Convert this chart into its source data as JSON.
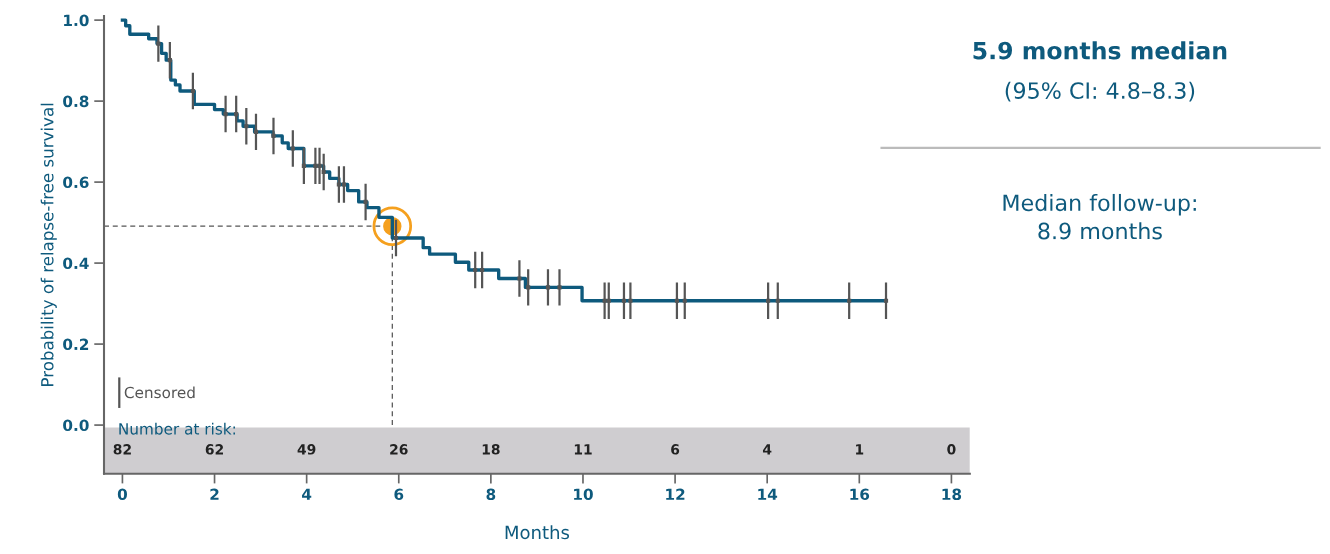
{
  "chart_data": {
    "type": "step",
    "xlabel": "Months",
    "ylabel": "Probability of relapse-free survival",
    "xlim": [
      -0.4,
      18.4
    ],
    "xticks": [
      0,
      2,
      4,
      6,
      8,
      10,
      12,
      14,
      16,
      18
    ],
    "ylim": [
      -0.12,
      1.01
    ],
    "yticks": [
      {
        "value": 0,
        "label": "0.0"
      },
      0.2,
      0.4,
      0.6,
      0.8,
      {
        "value": 1,
        "label": "1.0"
      }
    ],
    "grid": false,
    "legend": "bottom left",
    "series": [
      {
        "color": "#0e5a7d",
        "x": [
          0,
          0.07,
          0.16,
          0.57,
          0.75,
          0.85,
          0.95,
          1.05,
          1.15,
          1.25,
          1.56,
          2.0,
          2.19,
          2.49,
          2.62,
          2.87,
          3.27,
          3.47,
          3.6,
          3.94,
          4.37,
          4.5,
          4.7,
          4.89,
          5.13,
          5.31,
          5.57,
          5.86,
          6.53,
          6.67,
          7.23,
          7.52,
          8.17,
          8.75,
          9.98,
          16.54
        ],
        "values": [
          1.0,
          0.986,
          0.965,
          0.954,
          0.942,
          0.918,
          0.901,
          0.852,
          0.84,
          0.825,
          0.792,
          0.779,
          0.768,
          0.751,
          0.738,
          0.724,
          0.714,
          0.697,
          0.683,
          0.64,
          0.625,
          0.609,
          0.594,
          0.579,
          0.551,
          0.537,
          0.513,
          0.462,
          0.438,
          0.422,
          0.402,
          0.383,
          0.362,
          0.34,
          0.307,
          0.307
        ]
      },
      {
        "type": "scatter",
        "name": "Censored",
        "color": "#555555",
        "marker": "square",
        "errors": [
          0.045,
          0.045,
          0.045,
          0.045,
          0.045,
          0.045,
          0.045,
          0.045,
          0.045,
          0.045,
          0.045,
          0.045,
          0.045,
          0.045,
          0.045,
          0.045,
          0.045,
          0.045,
          0.045,
          0.045,
          0.045,
          0.045,
          0.045,
          0.045,
          0.045,
          0.045,
          0.045,
          0.045,
          0.045,
          0.045,
          0.045,
          0.045,
          0.045
        ],
        "x": [
          0.78,
          1.03,
          1.53,
          2.24,
          2.47,
          2.69,
          2.9,
          3.28,
          3.7,
          3.94,
          4.19,
          4.28,
          4.37,
          4.7,
          4.81,
          5.28,
          5.94,
          7.66,
          7.81,
          8.62,
          8.81,
          9.24,
          9.49,
          10.47,
          10.56,
          10.89,
          11.03,
          12.04,
          12.21,
          14.02,
          14.23,
          15.78,
          16.58
        ],
        "values": [
          0.942,
          0.901,
          0.825,
          0.768,
          0.768,
          0.738,
          0.724,
          0.714,
          0.683,
          0.64,
          0.64,
          0.64,
          0.625,
          0.594,
          0.594,
          0.551,
          0.462,
          0.383,
          0.383,
          0.362,
          0.34,
          0.34,
          0.34,
          0.307,
          0.307,
          0.307,
          0.307,
          0.307,
          0.307,
          0.307,
          0.307,
          0.307,
          0.307
        ]
      },
      {
        "type": "scatter",
        "color": "#f5a01e",
        "marker": "circle",
        "x": [
          5.86
        ],
        "values": [
          0.491
        ]
      }
    ],
    "ref_lines": [
      {
        "axis": "y",
        "value": 0.491,
        "color": "#555555",
        "line_style": "dashed"
      },
      {
        "axis": "x",
        "value": 5.86,
        "color": "#555555",
        "line_style": "dashed"
      }
    ],
    "bands": [
      {
        "axis": "y",
        "from": -0.12,
        "to": -0.006,
        "color": "#cfcdd0"
      }
    ],
    "annotations": [
      "Number at risk:",
      "5.9 months median",
      "(95% CI: 4.8–8.3)",
      "Median follow-up:\n8.9 months",
      "82",
      "62",
      "49",
      "26",
      "18",
      "11",
      "6",
      "4",
      "1",
      "0"
    ]
  }
}
